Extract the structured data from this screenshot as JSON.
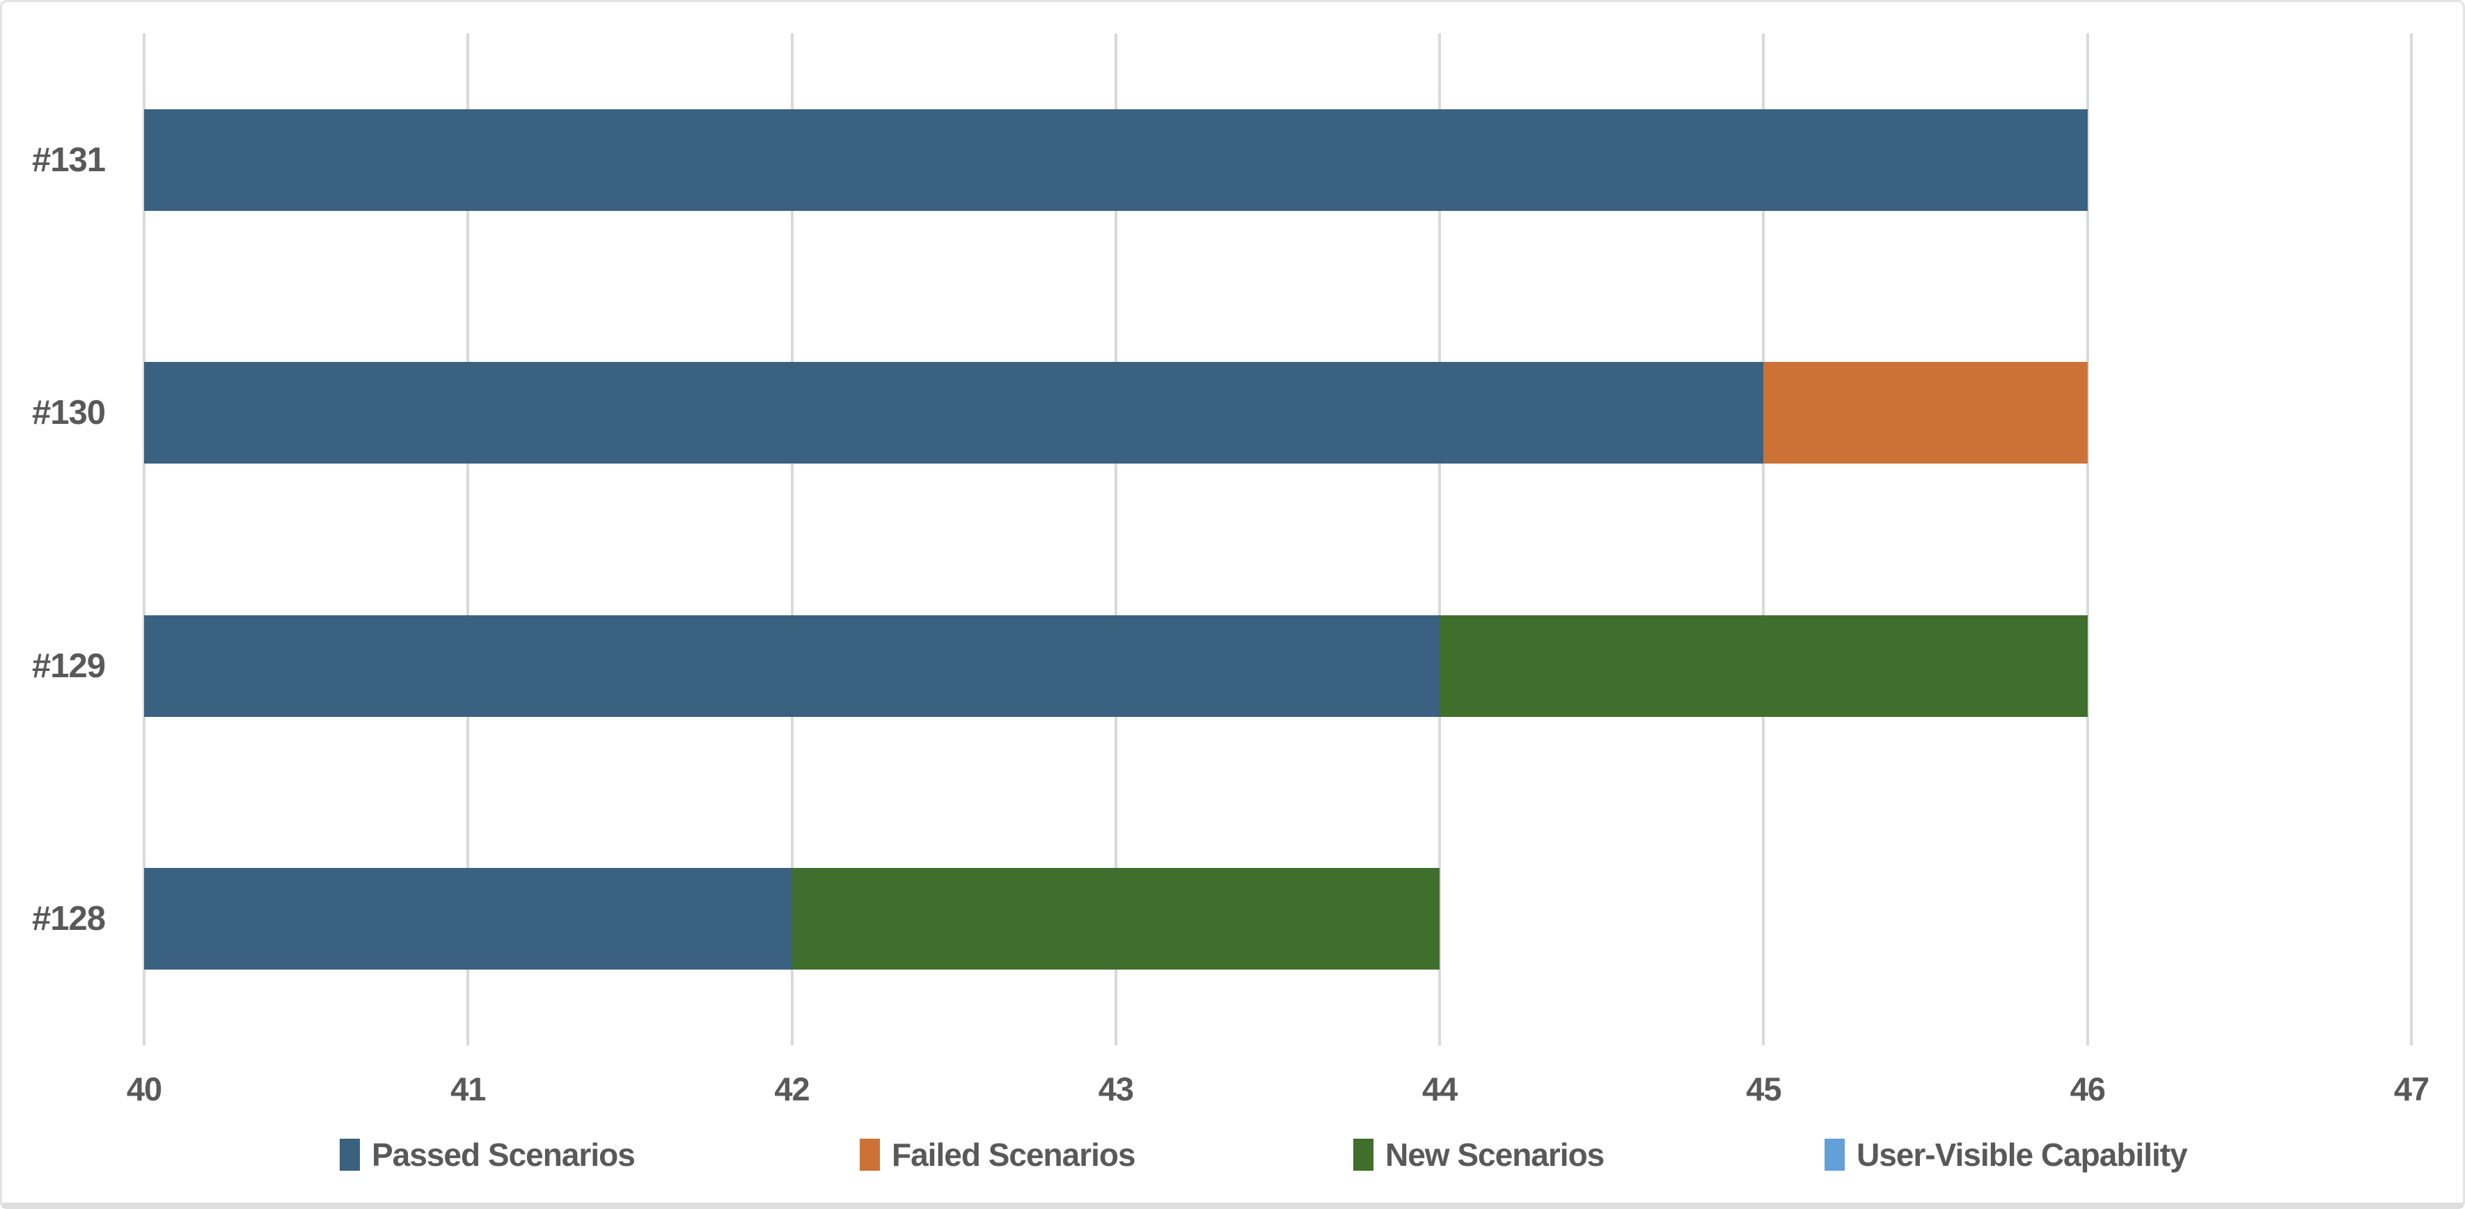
{
  "chart_data": {
    "type": "bar",
    "orientation": "horizontal",
    "stacked": true,
    "title": "",
    "xlabel": "",
    "ylabel": "",
    "grid": "vertical",
    "legend_position": "bottom",
    "axis": {
      "min": 40,
      "max": 47,
      "step": 1,
      "tick_labels": [
        "40",
        "41",
        "42",
        "43",
        "44",
        "45",
        "46",
        "47"
      ]
    },
    "categories": [
      "#131",
      "#130",
      "#129",
      "#128"
    ],
    "series": [
      {
        "name": "Passed Scenarios",
        "color": "#3A617F",
        "values": [
          46,
          45,
          44,
          42
        ]
      },
      {
        "name": "Failed Scenarios",
        "color": "#CC7237",
        "values": [
          0,
          1,
          0,
          0
        ]
      },
      {
        "name": "New Scenarios",
        "color": "#406E2C",
        "values": [
          0,
          0,
          2,
          2
        ]
      },
      {
        "name": "User-Visible Capability",
        "color": "#63A0D8",
        "values": [
          0,
          0,
          0,
          0
        ]
      }
    ],
    "totals": [
      46,
      46,
      46,
      44
    ]
  },
  "style": {
    "gridline_color": "#D9D9D9",
    "text_color": "#595959",
    "background_color": "#FFFFFF",
    "border_color": "#E0E0E0"
  }
}
